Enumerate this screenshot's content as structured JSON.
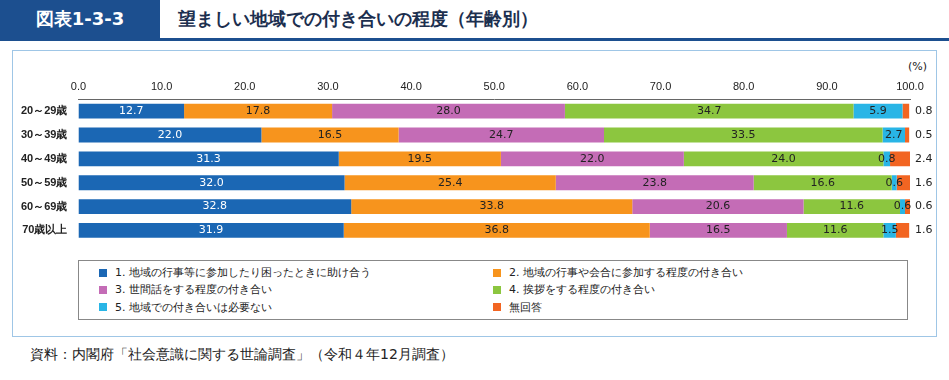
{
  "chart_data": {
    "type": "bar",
    "orientation": "horizontal",
    "stacked": true,
    "data_labels": true,
    "grid": false,
    "legend": "bottom",
    "figure_label": "図表1-3-3",
    "title": "望ましい地域での付き合いの程度（年齢別）",
    "xlabel": "(%)",
    "source": "資料：内閣府「社会意識に関する世論調査」（令和４年12月調査）",
    "categories": [
      "20～29歳",
      "30～39歳",
      "40～49歳",
      "50～59歳",
      "60～69歳",
      "70歳以上"
    ],
    "xlim": [
      0,
      100
    ],
    "xticks": [
      {
        "value": 0,
        "label": "0.0"
      },
      {
        "value": 10,
        "label": "10.0"
      },
      {
        "value": 20,
        "label": "20.0"
      },
      {
        "value": 30,
        "label": "30.0"
      },
      {
        "value": 40,
        "label": "40.0"
      },
      {
        "value": 50,
        "label": "50.0"
      },
      {
        "value": 60,
        "label": "60.0"
      },
      {
        "value": 70,
        "label": "70.0"
      },
      {
        "value": 80,
        "label": "80.0"
      },
      {
        "value": 90,
        "label": "90.0"
      },
      {
        "value": 100,
        "label": "100.0"
      }
    ],
    "series": [
      {
        "name": "1. 地域の行事等に参加したり困ったときに助け合う",
        "color": "#1b67b4",
        "values": [
          12.7,
          22.0,
          31.3,
          32.0,
          32.8,
          31.9
        ],
        "value_labels": [
          "12.7",
          "22.0",
          "31.3",
          "32.0",
          "32.8",
          "31.9"
        ]
      },
      {
        "name": "2. 地域の行事や会合に参加する程度の付き合い",
        "color": "#f7941d",
        "values": [
          17.8,
          16.5,
          19.5,
          25.4,
          33.8,
          36.8
        ],
        "value_labels": [
          "17.8",
          "16.5",
          "19.5",
          "25.4",
          "33.8",
          "36.8"
        ]
      },
      {
        "name": "3. 世間話をする程度の付き合い",
        "color": "#c46cb6",
        "values": [
          28.0,
          24.7,
          22.0,
          23.8,
          20.6,
          16.5
        ],
        "value_labels": [
          "28.0",
          "24.7",
          "22.0",
          "23.8",
          "20.6",
          "16.5"
        ]
      },
      {
        "name": "4. 挨拶をする程度の付き合い",
        "color": "#8cc63f",
        "values": [
          34.7,
          33.5,
          24.0,
          16.6,
          11.6,
          11.6
        ],
        "value_labels": [
          "34.7",
          "33.5",
          "24.0",
          "16.6",
          "11.6",
          "11.6"
        ]
      },
      {
        "name": "5. 地域での付き合いは必要ない",
        "color": "#29b5e6",
        "values": [
          5.9,
          2.7,
          0.8,
          0.6,
          0.6,
          1.5
        ],
        "value_labels": [
          "5.9",
          "2.7",
          "0.8",
          "0.6",
          "0.6",
          "1.5"
        ]
      },
      {
        "name": "無回答",
        "color": "#f26522",
        "values": [
          0.8,
          0.5,
          2.4,
          1.6,
          0.6,
          1.6
        ],
        "value_labels": [
          "0.8",
          "0.5",
          "2.4",
          "1.6",
          "0.6",
          "1.6"
        ]
      }
    ]
  }
}
